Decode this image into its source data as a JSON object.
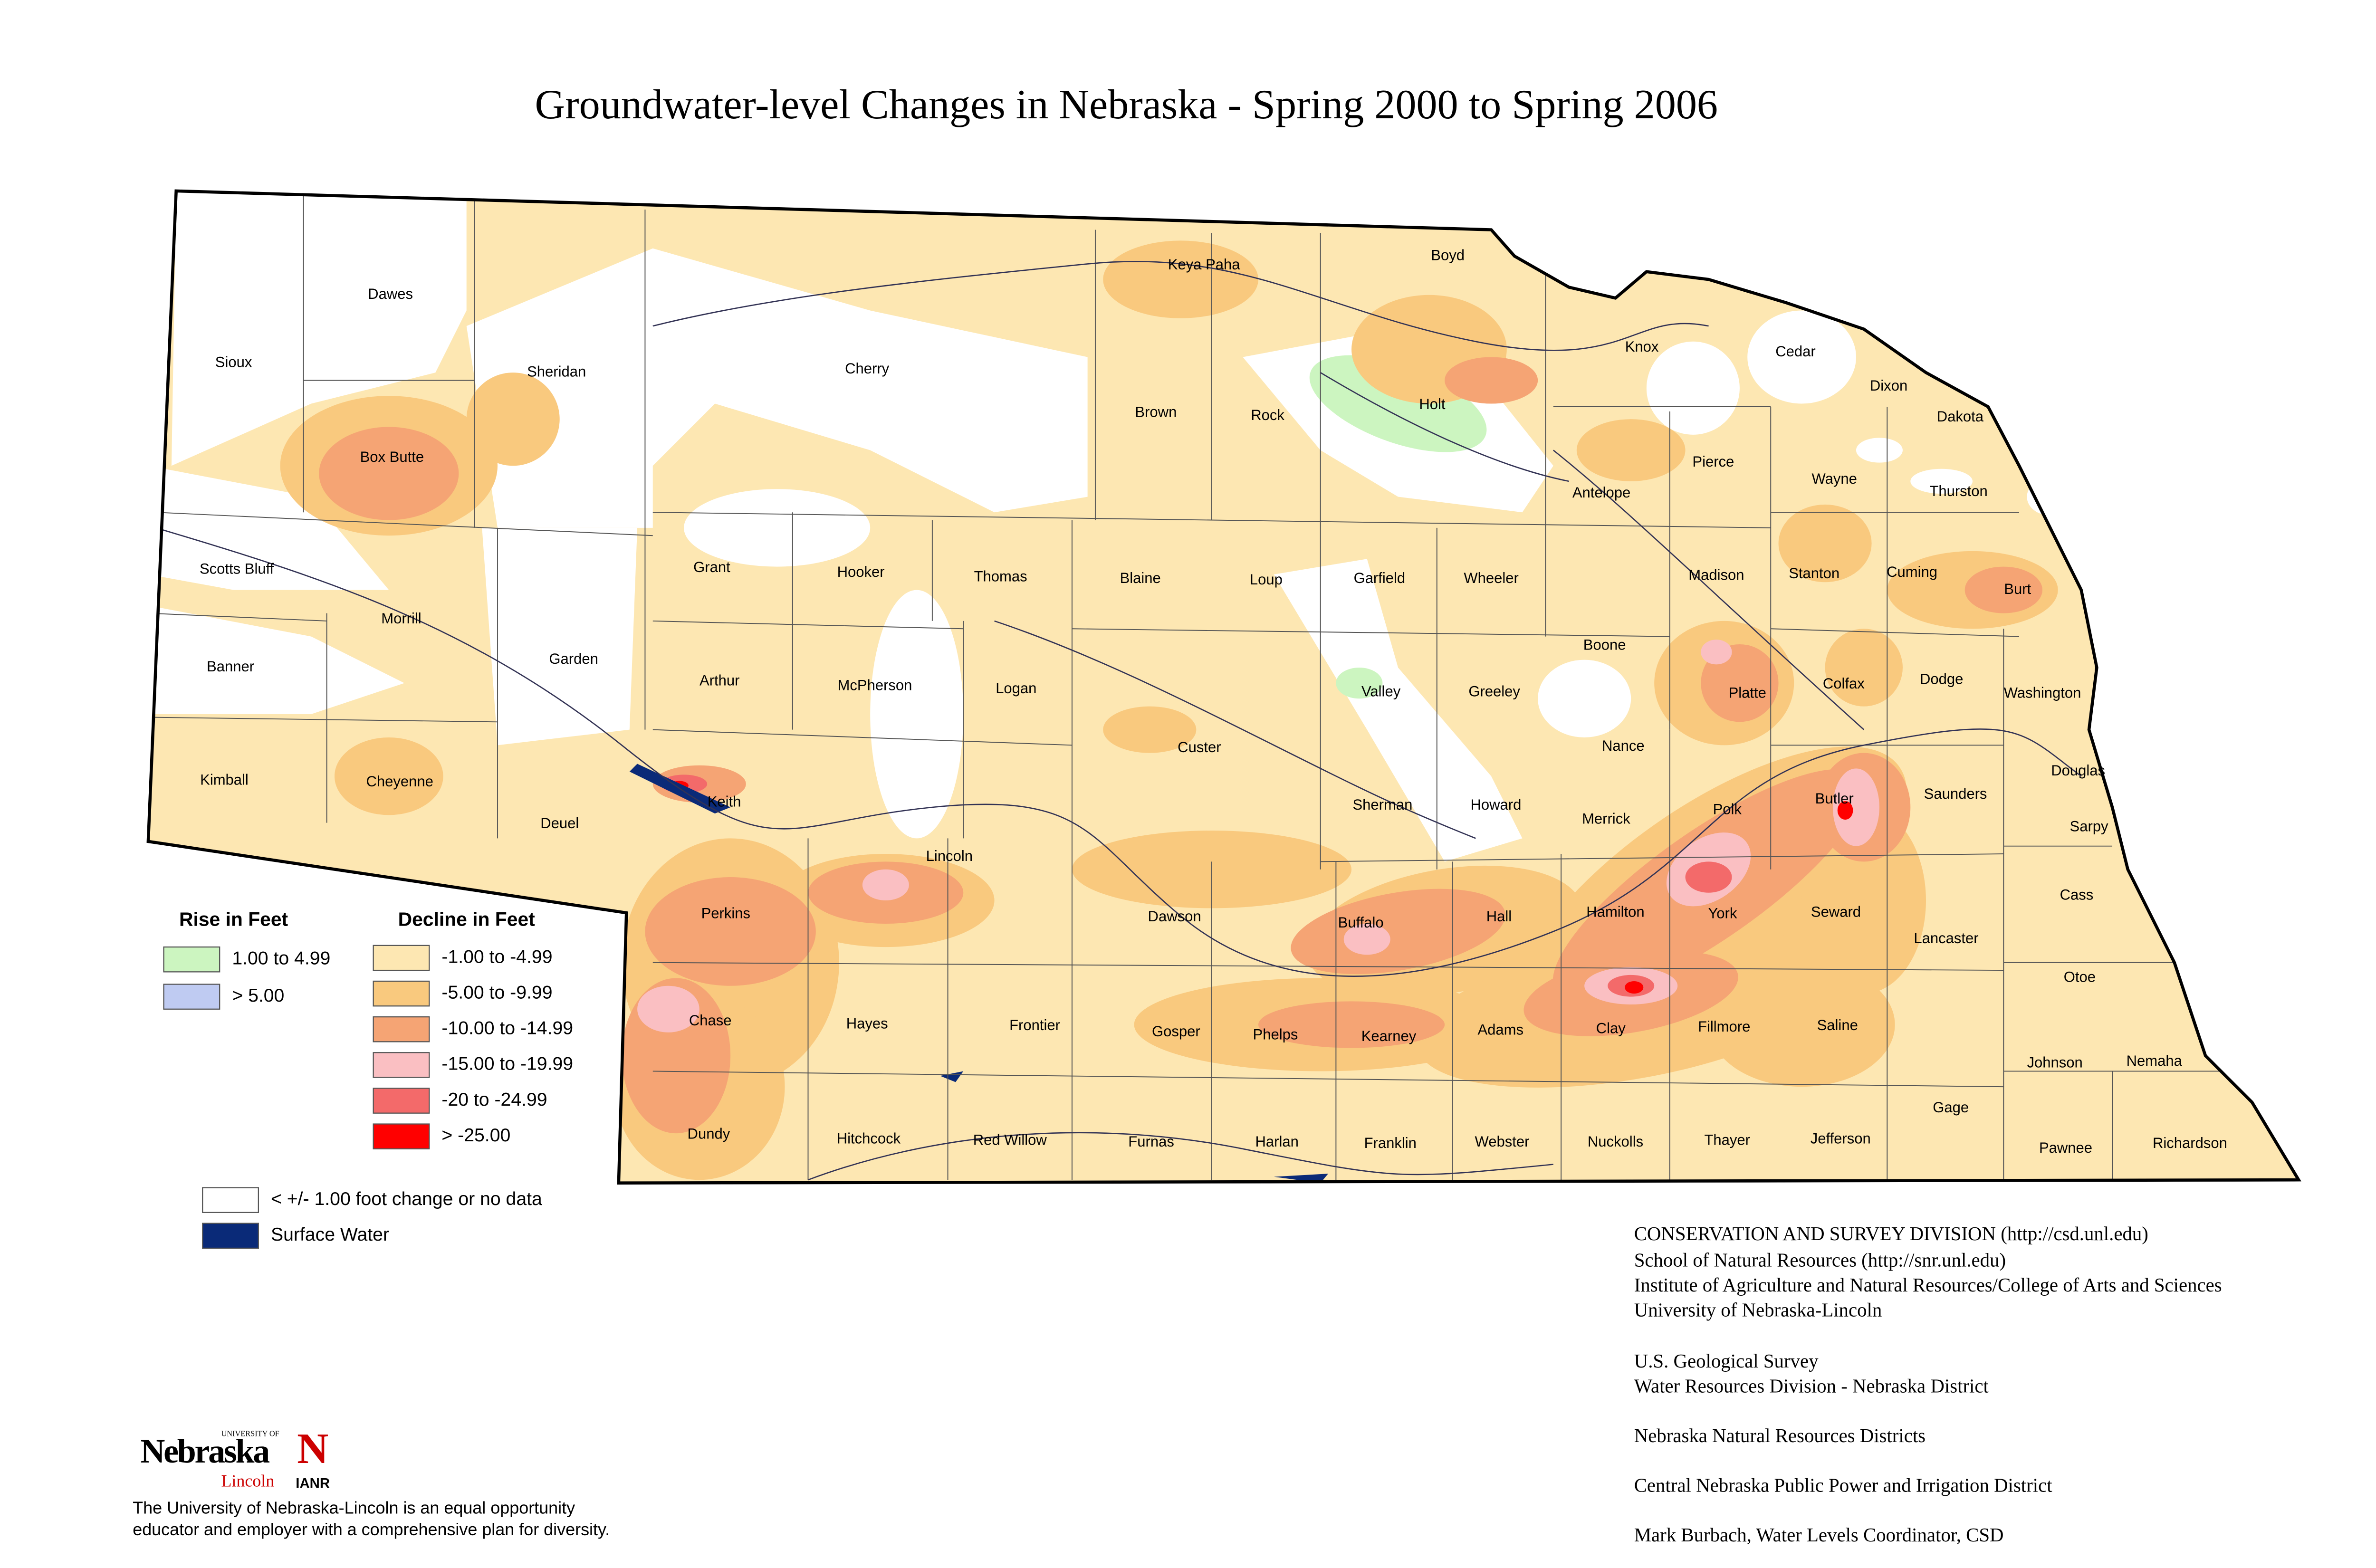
{
  "title": "Groundwater-level Changes in Nebraska - Spring 2000 to Spring 2006",
  "counties": [
    "Dawes",
    "Sioux",
    "Sheridan",
    "Cherry",
    "Keya Paha",
    "Boyd",
    "Knox",
    "Cedar",
    "Dixon",
    "Dakota",
    "Brown",
    "Rock",
    "Holt",
    "Box Butte",
    "Antelope",
    "Pierce",
    "Wayne",
    "Thurston",
    "Scotts Bluff",
    "Grant",
    "Hooker",
    "Thomas",
    "Blaine",
    "Loup",
    "Garfield",
    "Wheeler",
    "Madison",
    "Stanton",
    "Cuming",
    "Burt",
    "Morrill",
    "Banner",
    "Garden",
    "Arthur",
    "McPherson",
    "Logan",
    "Valley",
    "Greeley",
    "Boone",
    "Platte",
    "Colfax",
    "Dodge",
    "Washington",
    "Custer",
    "Nance",
    "Douglas",
    "Kimball",
    "Cheyenne",
    "Deuel",
    "Keith",
    "Sherman",
    "Howard",
    "Merrick",
    "Polk",
    "Butler",
    "Saunders",
    "Sarpy",
    "Lincoln",
    "Cass",
    "Perkins",
    "Dawson",
    "Buffalo",
    "Hall",
    "Hamilton",
    "York",
    "Seward",
    "Lancaster",
    "Otoe",
    "Chase",
    "Hayes",
    "Frontier",
    "Gosper",
    "Phelps",
    "Kearney",
    "Adams",
    "Clay",
    "Fillmore",
    "Saline",
    "Johnson",
    "Nemaha",
    "Gage",
    "Dundy",
    "Hitchcock",
    "Red Willow",
    "Furnas",
    "Harlan",
    "Franklin",
    "Webster",
    "Nuckolls",
    "Thayer",
    "Jefferson",
    "Pawnee",
    "Richardson"
  ],
  "legend": {
    "rise_title": "Rise in Feet",
    "rise": [
      {
        "label": "1.00 to 4.99",
        "color": "#ccf5c0"
      },
      {
        "label": "> 5.00",
        "color": "#bfcbf2"
      }
    ],
    "decline_title": "Decline in Feet",
    "decline": [
      {
        "label": "-1.00 to -4.99",
        "color": "#fde7b2"
      },
      {
        "label": "-5.00 to -9.99",
        "color": "#f9c97e"
      },
      {
        "label": "-10.00 to -14.99",
        "color": "#f5a474"
      },
      {
        "label": "-15.00 to -19.99",
        "color": "#fabfc2"
      },
      {
        "label": "-20 to -24.99",
        "color": "#f36a6a"
      },
      {
        "label": "> -25.00",
        "color": "#ff0000"
      }
    ],
    "other": [
      {
        "label": "< +/- 1.00 foot change or no data",
        "color": "#ffffff"
      },
      {
        "label": "Surface Water",
        "color": "#0a2a78"
      }
    ]
  },
  "credits": [
    "CONSERVATION AND SURVEY DIVISION (http://csd.unl.edu)",
    "School of Natural Resources (http://snr.unl.edu)",
    "Institute of Agriculture and Natural Resources/College of Arts and Sciences",
    "University of Nebraska-Lincoln",
    "U.S. Geological Survey",
    "Water Resources Division - Nebraska District",
    "Nebraska Natural Resources Districts",
    "Central Nebraska Public Power and Irrigation District",
    "Mark Burbach, Water Levels Coordinator, CSD"
  ],
  "logo": {
    "university": "UNIVERSITY OF",
    "name": "Nebraska",
    "campus": "Lincoln",
    "letter": "N",
    "unit": "IANR"
  },
  "disclaimer": [
    "The University of Nebraska-Lincoln is an equal opportunity",
    "educator and employer with a comprehensive plan for diversity."
  ]
}
